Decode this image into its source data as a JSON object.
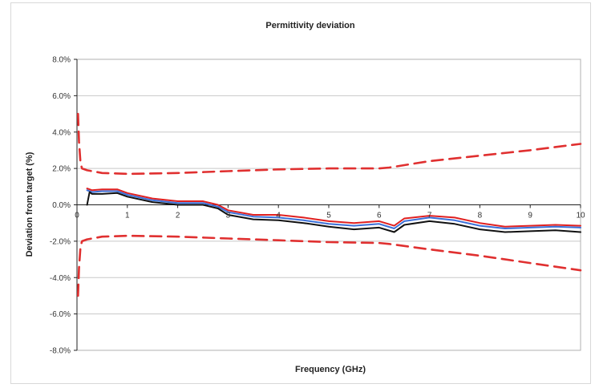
{
  "chart_data": {
    "type": "line",
    "title": "Permittivity deviation",
    "xlabel": "Frequency (GHz)",
    "ylabel": "Deviation from target (%)",
    "xlim": [
      0,
      10
    ],
    "ylim": [
      -8,
      8
    ],
    "x_ticks": [
      "0",
      "1",
      "2",
      "3",
      "4",
      "5",
      "6",
      "7",
      "8",
      "9",
      "10"
    ],
    "y_ticks": [
      "8.0%",
      "6.0%",
      "4.0%",
      "2.0%",
      "0.0%",
      "-2.0%",
      "-4.0%",
      "-6.0%",
      "-8.0%"
    ],
    "grid": true,
    "legend": "none",
    "series": [
      {
        "color": "#e03030",
        "style": "dashed",
        "x": [
          0.02,
          0.04,
          0.07,
          0.1,
          0.2,
          0.5,
          1.0,
          2.0,
          3.0,
          4.0,
          5.0,
          6.0,
          6.2,
          7.0,
          8.0,
          9.0,
          10.0
        ],
        "y": [
          5.0,
          3.5,
          2.3,
          2.0,
          1.9,
          1.75,
          1.7,
          1.75,
          1.85,
          1.95,
          2.0,
          2.0,
          2.05,
          2.4,
          2.7,
          3.0,
          3.35
        ]
      },
      {
        "color": "#e03030",
        "style": "dashed",
        "x": [
          0.02,
          0.04,
          0.07,
          0.1,
          0.2,
          0.5,
          1.0,
          2.0,
          3.0,
          4.0,
          5.0,
          6.0,
          6.2,
          7.0,
          8.0,
          9.0,
          10.0
        ],
        "y": [
          -5.0,
          -3.5,
          -2.3,
          -2.0,
          -1.9,
          -1.75,
          -1.7,
          -1.75,
          -1.85,
          -1.95,
          -2.05,
          -2.1,
          -2.15,
          -2.45,
          -2.8,
          -3.2,
          -3.6
        ]
      },
      {
        "color": "#e02020",
        "style": "solid",
        "x": [
          0.2,
          0.3,
          0.5,
          0.8,
          1.0,
          1.5,
          2.0,
          2.5,
          2.8,
          3.0,
          3.5,
          4.0,
          4.5,
          5.0,
          5.5,
          6.0,
          6.3,
          6.5,
          7.0,
          7.5,
          8.0,
          8.5,
          9.0,
          9.5,
          10.0
        ],
        "y": [
          0.9,
          0.8,
          0.85,
          0.85,
          0.65,
          0.35,
          0.2,
          0.2,
          0.0,
          -0.3,
          -0.55,
          -0.55,
          -0.7,
          -0.9,
          -1.0,
          -0.9,
          -1.15,
          -0.75,
          -0.6,
          -0.7,
          -1.0,
          -1.2,
          -1.15,
          -1.1,
          -1.15
        ]
      },
      {
        "color": "#3a6fd8",
        "style": "solid",
        "x": [
          0.2,
          0.3,
          0.5,
          0.8,
          1.0,
          1.5,
          2.0,
          2.5,
          2.8,
          3.0,
          3.5,
          4.0,
          4.5,
          5.0,
          5.5,
          6.0,
          6.3,
          6.5,
          7.0,
          7.5,
          8.0,
          8.5,
          9.0,
          9.5,
          10.0
        ],
        "y": [
          0.8,
          0.7,
          0.75,
          0.75,
          0.55,
          0.25,
          0.1,
          0.1,
          -0.1,
          -0.4,
          -0.65,
          -0.7,
          -0.85,
          -1.05,
          -1.15,
          -1.05,
          -1.3,
          -0.9,
          -0.7,
          -0.85,
          -1.15,
          -1.3,
          -1.25,
          -1.2,
          -1.25
        ]
      },
      {
        "color": "#111111",
        "style": "solid",
        "x": [
          0.2,
          0.25,
          0.3,
          0.5,
          0.8,
          1.0,
          1.5,
          2.0,
          2.5,
          2.8,
          3.0,
          3.5,
          4.0,
          4.5,
          5.0,
          5.5,
          6.0,
          6.3,
          6.5,
          7.0,
          7.5,
          8.0,
          8.5,
          9.0,
          9.5,
          10.0
        ],
        "y": [
          0.0,
          0.7,
          0.6,
          0.6,
          0.65,
          0.45,
          0.15,
          0.0,
          0.0,
          -0.2,
          -0.55,
          -0.8,
          -0.85,
          -1.0,
          -1.2,
          -1.35,
          -1.25,
          -1.5,
          -1.1,
          -0.9,
          -1.05,
          -1.35,
          -1.5,
          -1.45,
          -1.4,
          -1.5
        ]
      }
    ]
  }
}
